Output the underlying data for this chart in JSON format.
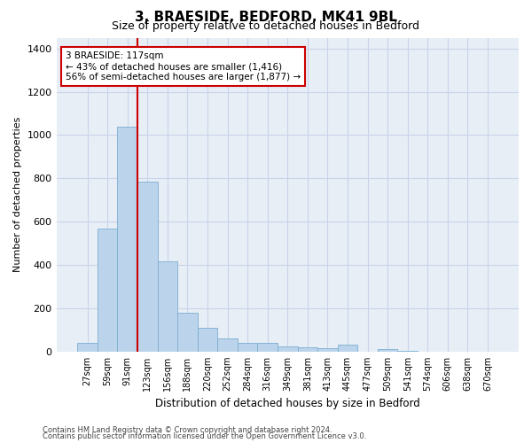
{
  "title": "3, BRAESIDE, BEDFORD, MK41 9BL",
  "subtitle": "Size of property relative to detached houses in Bedford",
  "xlabel": "Distribution of detached houses by size in Bedford",
  "ylabel": "Number of detached properties",
  "categories": [
    "27sqm",
    "59sqm",
    "91sqm",
    "123sqm",
    "156sqm",
    "188sqm",
    "220sqm",
    "252sqm",
    "284sqm",
    "316sqm",
    "349sqm",
    "381sqm",
    "413sqm",
    "445sqm",
    "477sqm",
    "509sqm",
    "541sqm",
    "574sqm",
    "606sqm",
    "638sqm",
    "670sqm"
  ],
  "values": [
    40,
    570,
    1040,
    785,
    415,
    180,
    110,
    60,
    40,
    40,
    25,
    20,
    15,
    30,
    0,
    10,
    5,
    0,
    0,
    0,
    0
  ],
  "bar_color": "#bcd4eb",
  "bar_edge_color": "#7aaed0",
  "grid_color": "#c8d4e8",
  "background_color": "#e8eef6",
  "property_line_x": 2.5,
  "property_line_color": "#cc0000",
  "annotation_text": "3 BRAESIDE: 117sqm\n← 43% of detached houses are smaller (1,416)\n56% of semi-detached houses are larger (1,877) →",
  "annotation_box_color": "#ffffff",
  "annotation_border_color": "#cc0000",
  "ylim": [
    0,
    1450
  ],
  "yticks": [
    0,
    200,
    400,
    600,
    800,
    1000,
    1200,
    1400
  ],
  "footer_line1": "Contains HM Land Registry data © Crown copyright and database right 2024.",
  "footer_line2": "Contains public sector information licensed under the Open Government Licence v3.0."
}
